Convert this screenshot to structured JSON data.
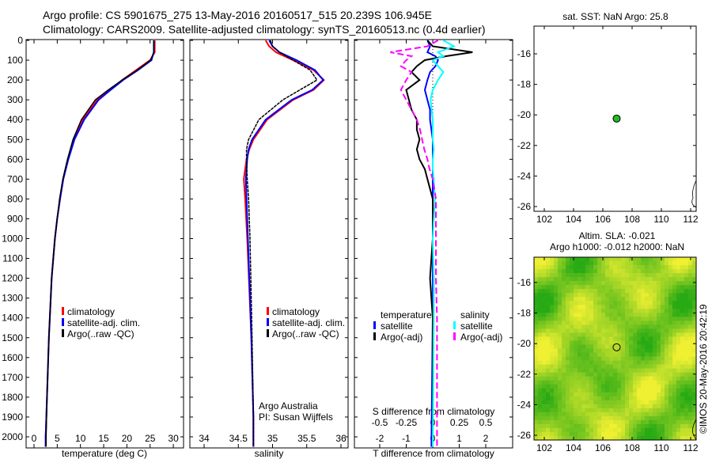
{
  "title": {
    "line1": "Argo profile: CS 5901675_275 13-May-2016 20160517_515 20.239S 106.945E",
    "line2": "Climatology: CARS2009. Satellite-adjusted climatology: synTS_20160513.nc (0.4d earlier)"
  },
  "credit": "©IMOS 20-May-2016 20:42:19",
  "colors": {
    "climatology": "#ff0000",
    "satellite": "#0000ff",
    "argo": "#000000",
    "sal_satellite": "#00ffff",
    "sal_argo": "#ff00ff",
    "marker": "#22bb22"
  },
  "chart_data": [
    {
      "type": "line",
      "xlabel": "temperature (deg C)",
      "ylabel": "",
      "xlim": [
        -1,
        31
      ],
      "ylim": [
        2060,
        0
      ],
      "xticks": [
        "0",
        "5",
        "10",
        "15",
        "20",
        "25",
        "30"
      ],
      "yticks": [
        "0",
        "100",
        "200",
        "300",
        "400",
        "500",
        "600",
        "700",
        "800",
        "900",
        "1000",
        "1100",
        "1200",
        "1300",
        "1400",
        "1500",
        "1600",
        "1700",
        "1800",
        "1900",
        "2000"
      ],
      "legend": [
        "climatology",
        "satellite-adj. clim.",
        "Argo(..raw -QC)"
      ],
      "pressure": [
        0,
        60,
        100,
        150,
        200,
        250,
        300,
        400,
        500,
        600,
        700,
        800,
        900,
        1000,
        1200,
        1500,
        1800,
        2000,
        2050
      ],
      "series": [
        {
          "name": "climatology",
          "values": [
            26,
            26,
            25,
            22,
            19,
            16.3,
            13.6,
            10.5,
            8.5,
            7.3,
            6.3,
            5.6,
            5.0,
            4.5,
            3.8,
            3.2,
            2.8,
            2.5,
            2.5
          ]
        },
        {
          "name": "satellite-adj. clim.",
          "values": [
            25.8,
            25.8,
            25.3,
            22.4,
            19.2,
            16.5,
            13.9,
            10.8,
            8.7,
            7.4,
            6.3,
            5.6,
            5.0,
            4.5,
            3.8,
            3.2,
            2.8,
            2.5,
            2.5
          ]
        },
        {
          "name": "Argo(..raw -QC)",
          "values": [
            25.8,
            25.8,
            25.1,
            22.2,
            19.0,
            16.0,
            13.2,
            10.2,
            8.4,
            7.2,
            6.2,
            5.5,
            5.0,
            4.5,
            3.8,
            3.2,
            2.8,
            2.6,
            2.6
          ]
        }
      ]
    },
    {
      "type": "line",
      "xlabel": "salinity",
      "xlim": [
        33.8,
        36.1
      ],
      "ylim": [
        2060,
        0
      ],
      "xticks": [
        "34",
        "34.5",
        "35",
        "35.5",
        "36"
      ],
      "legend": [
        "climatology",
        "satellite-adj. clim.",
        "Argo(..raw -QC)"
      ],
      "annotation": [
        "Argo Australia",
        "PI: Susan Wijffels"
      ],
      "pressure": [
        0,
        30,
        60,
        100,
        150,
        200,
        250,
        300,
        400,
        500,
        550,
        600,
        700,
        800,
        1000,
        1500,
        1900,
        2050
      ],
      "series": [
        {
          "name": "climatology",
          "values": [
            34.9,
            34.95,
            35.05,
            35.3,
            35.6,
            35.75,
            35.6,
            35.3,
            34.92,
            34.72,
            34.66,
            34.62,
            34.58,
            34.6,
            34.63,
            34.69,
            34.72,
            34.72
          ]
        },
        {
          "name": "satellite-adj. clim.",
          "values": [
            34.95,
            35.0,
            35.1,
            35.35,
            35.62,
            35.74,
            35.58,
            35.28,
            34.9,
            34.7,
            34.65,
            34.63,
            34.61,
            34.62,
            34.64,
            34.69,
            34.72,
            34.72
          ]
        },
        {
          "name": "Argo(..raw -QC)",
          "values": [
            34.97,
            35.0,
            35.1,
            35.3,
            35.55,
            35.65,
            35.4,
            35.15,
            34.8,
            34.65,
            34.62,
            34.62,
            34.63,
            34.65,
            34.67,
            34.7,
            34.72,
            34.72
          ]
        }
      ]
    },
    {
      "type": "line",
      "xlabel": "T difference from climatology",
      "x2label": "S difference from climatology",
      "xlim": [
        -3,
        3
      ],
      "ylim": [
        2060,
        0
      ],
      "xticks": [
        "-2",
        "-1",
        "0",
        "1",
        "2"
      ],
      "x2ticks": [
        "-0.5",
        "-0.25",
        "0",
        "0.25",
        "0.5"
      ],
      "legend": {
        "temperature_header": "temperature",
        "salinity_header": "salinity",
        "t_satellite": "satellite",
        "t_argo": "Argo(-adj)",
        "s_satellite": "satellite",
        "s_argo": "Argo(-adj)"
      },
      "pressure": [
        0,
        30,
        60,
        80,
        100,
        130,
        160,
        200,
        250,
        300,
        350,
        400,
        450,
        500,
        550,
        600,
        650,
        700,
        800,
        1000,
        1200,
        1400,
        2050
      ],
      "series": [
        {
          "name": "T satellite",
          "values": [
            -0.2,
            -0.1,
            -0.2,
            0.1,
            0.2,
            0.1,
            -0.1,
            -0.2,
            -0.3,
            -0.2,
            -0.1,
            -0.1,
            -0.05,
            0,
            0,
            0,
            0,
            0,
            0,
            0,
            0,
            0,
            -0.05
          ]
        },
        {
          "name": "T Argo(-adj)",
          "values": [
            -0.2,
            0,
            1.5,
            0.5,
            -0.3,
            -0.6,
            -0.8,
            -0.5,
            -1.0,
            -0.9,
            -0.8,
            -0.6,
            -0.6,
            -0.5,
            -0.6,
            -0.5,
            -0.3,
            -0.2,
            0,
            0,
            -0.1,
            0,
            0
          ]
        },
        {
          "name": "S satellite",
          "values": [
            0.1,
            0.2,
            0.05,
            0.1,
            0.0,
            0.05,
            0.1,
            0.05,
            0.0,
            -0.02,
            -0.01,
            0.0,
            0.0,
            0.0,
            0.01,
            0.0,
            0.0,
            0.01,
            0.02,
            0.0,
            0.01,
            0.01,
            0.0
          ]
        },
        {
          "name": "S Argo(-adj)",
          "values": [
            0.05,
            -0.05,
            -0.4,
            -0.2,
            -0.25,
            -0.3,
            -0.2,
            -0.25,
            -0.3,
            -0.25,
            -0.2,
            -0.15,
            -0.12,
            -0.1,
            -0.08,
            -0.05,
            -0.03,
            0.0,
            0.03,
            0.03,
            0.03,
            0.04,
            0.04
          ]
        }
      ]
    },
    {
      "type": "scatter",
      "title": "sat. SST: NaN Argo: 25.8",
      "xlim": [
        101.3,
        112.3
      ],
      "ylim": [
        -26.4,
        -14.5
      ],
      "xticks": [
        "102",
        "104",
        "106",
        "108",
        "110",
        "112"
      ],
      "yticks": [
        "-16",
        "-18",
        "-20",
        "-22",
        "-24",
        "-26"
      ],
      "points": [
        {
          "lon": 106.945,
          "lat": -20.239
        }
      ]
    },
    {
      "type": "heatmap",
      "title1": "Altim. SLA: -0.021",
      "title2": "Argo h1000: -0.012 h2000: NaN",
      "xlim": [
        101.3,
        112.3
      ],
      "ylim": [
        -26.4,
        -14.5
      ],
      "xticks": [
        "102",
        "104",
        "106",
        "108",
        "110",
        "112"
      ],
      "yticks": [
        "-16",
        "-18",
        "-20",
        "-22",
        "-24",
        "-26"
      ],
      "points": [
        {
          "lon": 106.945,
          "lat": -20.239
        }
      ]
    }
  ]
}
